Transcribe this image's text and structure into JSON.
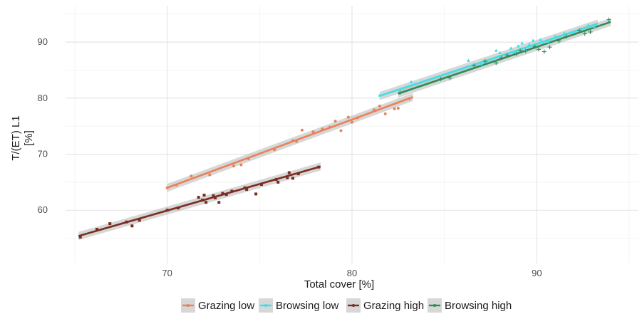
{
  "chart_data": {
    "type": "scatter",
    "title": "",
    "xlabel": "Total cover [%]",
    "ylabel_lines": [
      "T/(ET) L1",
      "[%]"
    ],
    "xlim": [
      64.5,
      95.5
    ],
    "ylim": [
      50.5,
      96.5
    ],
    "x_ticks": [
      70,
      80,
      90
    ],
    "y_ticks": [
      60,
      70,
      80,
      90
    ],
    "grid": true,
    "legend_position": "bottom",
    "series": [
      {
        "name": "Grazing low",
        "color": "#e8825a",
        "marker": "circle",
        "fit": {
          "x": [
            70.0,
            83.3
          ],
          "y": [
            64.0,
            80.2
          ]
        },
        "points": [
          [
            70.0,
            64.0
          ],
          [
            70.5,
            64.5
          ],
          [
            71.3,
            66.1
          ],
          [
            72.3,
            66.3
          ],
          [
            73.6,
            67.9
          ],
          [
            74.0,
            68.1
          ],
          [
            74.4,
            69.2
          ],
          [
            75.8,
            70.8
          ],
          [
            76.8,
            72.4
          ],
          [
            77.0,
            72.3
          ],
          [
            77.3,
            74.3
          ],
          [
            77.9,
            74.0
          ],
          [
            78.4,
            74.5
          ],
          [
            78.8,
            74.8
          ],
          [
            79.1,
            75.9
          ],
          [
            79.4,
            74.2
          ],
          [
            79.8,
            76.6
          ],
          [
            80.0,
            75.7
          ],
          [
            80.3,
            76.5
          ],
          [
            81.2,
            77.9
          ],
          [
            81.5,
            78.6
          ],
          [
            81.8,
            77.2
          ],
          [
            82.3,
            78.1
          ],
          [
            82.5,
            78.2
          ],
          [
            83.1,
            79.9
          ]
        ]
      },
      {
        "name": "Browsing low",
        "color": "#3de0e8",
        "marker": "triangle",
        "fit": {
          "x": [
            81.5,
            93.3
          ],
          "y": [
            80.4,
            93.3
          ]
        },
        "points": [
          [
            81.5,
            80.5
          ],
          [
            83.2,
            82.9
          ],
          [
            86.3,
            86.7
          ],
          [
            87.0,
            86.1
          ],
          [
            87.3,
            86.6
          ],
          [
            87.8,
            88.5
          ],
          [
            88.0,
            88.1
          ],
          [
            88.6,
            88.9
          ],
          [
            88.8,
            88.2
          ],
          [
            89.0,
            89.3
          ],
          [
            89.2,
            89.8
          ],
          [
            89.4,
            88.6
          ],
          [
            89.6,
            89.6
          ],
          [
            89.8,
            90.3
          ],
          [
            90.0,
            89.5
          ],
          [
            90.2,
            90.4
          ],
          [
            90.6,
            90.1
          ],
          [
            91.0,
            91.0
          ],
          [
            91.5,
            91.6
          ],
          [
            92.0,
            91.9
          ],
          [
            92.4,
            92.4
          ],
          [
            92.8,
            93.0
          ],
          [
            93.1,
            92.8
          ]
        ]
      },
      {
        "name": "Grazing high",
        "color": "#7a2e22",
        "marker": "square",
        "fit": {
          "x": [
            65.2,
            78.3
          ],
          "y": [
            55.4,
            67.8
          ]
        },
        "points": [
          [
            65.3,
            55.2
          ],
          [
            66.2,
            56.6
          ],
          [
            66.9,
            57.6
          ],
          [
            67.8,
            57.9
          ],
          [
            68.1,
            57.2
          ],
          [
            68.5,
            58.2
          ],
          [
            70.0,
            60.0
          ],
          [
            70.6,
            60.4
          ],
          [
            71.7,
            62.3
          ],
          [
            71.9,
            61.8
          ],
          [
            72.0,
            62.7
          ],
          [
            72.1,
            61.4
          ],
          [
            72.5,
            62.6
          ],
          [
            72.6,
            62.2
          ],
          [
            72.8,
            61.4
          ],
          [
            73.0,
            63.0
          ],
          [
            73.2,
            62.8
          ],
          [
            73.5,
            63.4
          ],
          [
            74.2,
            64.0
          ],
          [
            74.3,
            63.7
          ],
          [
            74.8,
            62.9
          ],
          [
            75.1,
            64.6
          ],
          [
            75.9,
            65.5
          ],
          [
            76.0,
            65.0
          ],
          [
            76.5,
            65.8
          ],
          [
            76.6,
            66.7
          ],
          [
            76.8,
            65.7
          ],
          [
            77.1,
            66.5
          ],
          [
            78.2,
            67.7
          ]
        ]
      },
      {
        "name": "Browsing high",
        "color": "#2e8b57",
        "marker": "plus",
        "fit": {
          "x": [
            82.5,
            94.0
          ],
          "y": [
            80.8,
            93.6
          ]
        },
        "points": [
          [
            82.6,
            81.0
          ],
          [
            84.8,
            83.4
          ],
          [
            85.3,
            83.6
          ],
          [
            86.6,
            85.8
          ],
          [
            87.2,
            86.6
          ],
          [
            87.8,
            86.3
          ],
          [
            88.1,
            87.2
          ],
          [
            88.4,
            87.7
          ],
          [
            88.9,
            87.9
          ],
          [
            89.1,
            88.5
          ],
          [
            89.4,
            88.4
          ],
          [
            89.9,
            89.2
          ],
          [
            90.1,
            88.7
          ],
          [
            90.4,
            88.3
          ],
          [
            90.7,
            89.1
          ],
          [
            91.2,
            90.2
          ],
          [
            91.6,
            91.0
          ],
          [
            92.3,
            92.1
          ],
          [
            92.6,
            91.5
          ],
          [
            92.9,
            91.8
          ],
          [
            93.9,
            94.0
          ]
        ]
      }
    ]
  }
}
